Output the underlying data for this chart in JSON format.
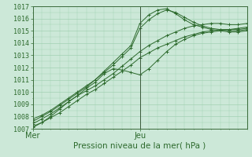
{
  "title": "",
  "xlabel": "Pression niveau de la mer( hPa )",
  "ylim": [
    1007,
    1017
  ],
  "xlim": [
    0,
    48
  ],
  "yticks": [
    1007,
    1008,
    1009,
    1010,
    1011,
    1012,
    1013,
    1014,
    1015,
    1016,
    1017
  ],
  "xtick_positions": [
    0,
    24
  ],
  "xtick_labels": [
    "Mer",
    "Jeu"
  ],
  "vline_x": 24,
  "bg_color": "#cce8d8",
  "grid_color": "#99ccaa",
  "line_color": "#2d6a2d",
  "marker_color": "#2d6a2d",
  "lines": [
    {
      "x": [
        0,
        2,
        4,
        6,
        8,
        10,
        12,
        14,
        16,
        18,
        20,
        22,
        24,
        26,
        28,
        30,
        32,
        34,
        36,
        38,
        40,
        42,
        44,
        46,
        48
      ],
      "y": [
        1007.2,
        1007.5,
        1007.9,
        1008.3,
        1008.8,
        1009.3,
        1009.8,
        1010.2,
        1010.7,
        1011.2,
        1011.7,
        1012.2,
        1012.8,
        1013.2,
        1013.6,
        1013.9,
        1014.2,
        1014.5,
        1014.7,
        1014.9,
        1015.0,
        1015.1,
        1015.1,
        1015.2,
        1015.3
      ]
    },
    {
      "x": [
        0,
        2,
        4,
        6,
        8,
        10,
        12,
        14,
        16,
        18,
        20,
        22,
        24,
        26,
        28,
        30,
        32,
        34,
        36,
        38,
        40,
        42,
        44,
        46,
        48
      ],
      "y": [
        1007.4,
        1007.8,
        1008.2,
        1008.7,
        1009.2,
        1009.7,
        1010.1,
        1010.5,
        1011.0,
        1011.5,
        1012.1,
        1012.7,
        1013.3,
        1013.8,
        1014.2,
        1014.6,
        1014.9,
        1015.2,
        1015.4,
        1015.5,
        1015.6,
        1015.6,
        1015.5,
        1015.5,
        1015.6
      ]
    },
    {
      "x": [
        0,
        2,
        4,
        6,
        8,
        10,
        12,
        14,
        16,
        18,
        20,
        22,
        24,
        26,
        28,
        30,
        32,
        34,
        36,
        38,
        40,
        42,
        44,
        46,
        48
      ],
      "y": [
        1007.8,
        1008.1,
        1008.5,
        1009.0,
        1009.5,
        1010.0,
        1010.5,
        1011.0,
        1011.6,
        1012.2,
        1012.9,
        1013.6,
        1015.2,
        1015.9,
        1016.4,
        1016.7,
        1016.5,
        1016.1,
        1015.7,
        1015.4,
        1015.2,
        1015.1,
        1015.0,
        1015.0,
        1015.1
      ]
    },
    {
      "x": [
        0,
        2,
        4,
        6,
        8,
        10,
        12,
        14,
        16,
        18,
        20,
        22,
        24,
        26,
        28,
        30,
        32,
        34,
        36,
        38,
        40,
        42,
        44,
        46,
        48
      ],
      "y": [
        1007.6,
        1008.0,
        1008.4,
        1008.9,
        1009.4,
        1009.9,
        1010.4,
        1011.0,
        1011.7,
        1012.4,
        1013.1,
        1013.8,
        1015.6,
        1016.3,
        1016.7,
        1016.8,
        1016.4,
        1015.9,
        1015.5,
        1015.3,
        1015.1,
        1015.0,
        1014.9,
        1014.9,
        1015.0
      ]
    },
    {
      "x": [
        0,
        2,
        4,
        6,
        8,
        10,
        12,
        14,
        16,
        18,
        20,
        22,
        24,
        26,
        28,
        30,
        32,
        34,
        36,
        38,
        40,
        42,
        44,
        46,
        48
      ],
      "y": [
        1007.1,
        1007.5,
        1008.0,
        1008.6,
        1009.2,
        1009.7,
        1010.3,
        1010.8,
        1011.5,
        1011.9,
        1011.8,
        1011.6,
        1011.4,
        1011.9,
        1012.6,
        1013.3,
        1013.9,
        1014.3,
        1014.6,
        1014.8,
        1014.9,
        1015.0,
        1015.1,
        1015.1,
        1015.2
      ]
    }
  ]
}
